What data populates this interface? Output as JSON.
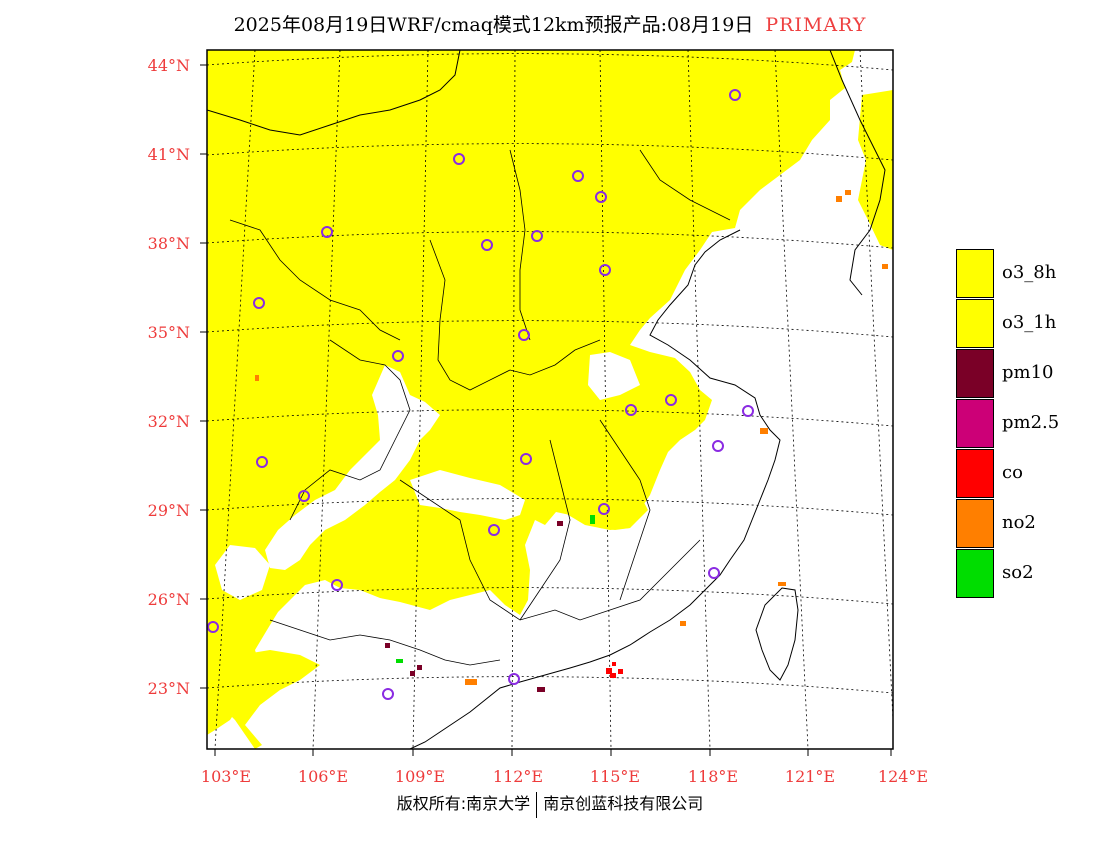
{
  "header": {
    "title": "2025年08月19日WRF/cmaq模式12km预报产品:08月19日",
    "tag": "PRIMARY"
  },
  "axes": {
    "lat_labels": [
      "44°N",
      "41°N",
      "38°N",
      "35°N",
      "32°N",
      "29°N",
      "26°N",
      "23°N"
    ],
    "lon_labels": [
      "103°E",
      "106°E",
      "109°E",
      "112°E",
      "115°E",
      "118°E",
      "121°E",
      "124°E"
    ]
  },
  "legend": {
    "items": [
      {
        "label": "o3_8h",
        "color": "#ffff00"
      },
      {
        "label": "o3_1h",
        "color": "#ffff00"
      },
      {
        "label": "pm10",
        "color": "#7a0027"
      },
      {
        "label": "pm2.5",
        "color": "#cc0077"
      },
      {
        "label": "co",
        "color": "#ff0000"
      },
      {
        "label": "no2",
        "color": "#ff7f00"
      },
      {
        "label": "so2",
        "color": "#00dd00"
      }
    ]
  },
  "colors": {
    "o3_fill": "#ffff00",
    "station_marker": "#8a2be2",
    "label_red": "#ee3b3b"
  },
  "footer": {
    "left": "版权所有:南京大学",
    "right": "南京创蓝科技有限公司"
  }
}
